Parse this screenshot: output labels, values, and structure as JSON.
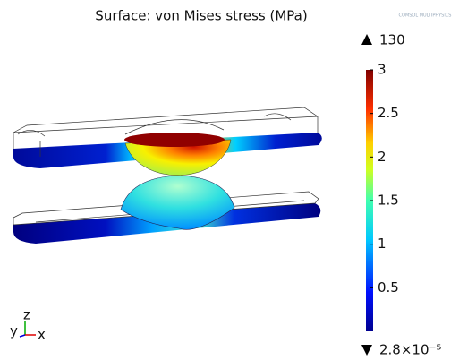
{
  "title": "Surface: von Mises stress (MPa)",
  "logo": "COMSOL MULTIPHYSICS",
  "colorbar": {
    "max": 130,
    "min": {
      "value": 2.8e-05,
      "label": "2.8×10⁻⁵"
    },
    "ticks": [
      0.5,
      1,
      1.5,
      2,
      2.5,
      3
    ],
    "lim": [
      2.8e-05,
      3
    ]
  },
  "axes": {
    "z": "z",
    "y": "y",
    "x": "x"
  }
}
